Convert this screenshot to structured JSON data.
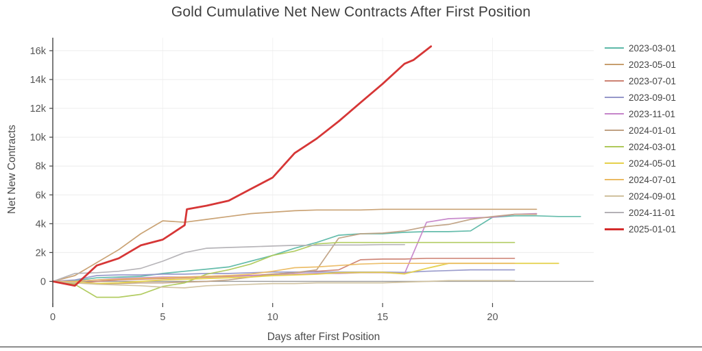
{
  "figure": {
    "title": "Gold Cumulative Net New Contracts After First Position",
    "xlabel": "Days after First Position",
    "ylabel": "Net New Contracts"
  },
  "style": {
    "background": "#ffffff",
    "grid_color": "#ececec",
    "vgrid_color": "#f2f2f2",
    "zeroline_color": "#999999",
    "axis_color": "#444444",
    "tick_label_color": "#555555",
    "bottom_divider_color": "#8d8d8d"
  },
  "chart_data": {
    "type": "line",
    "title": "Gold Cumulative Net New Contracts After First Position",
    "xlabel": "Days after First Position",
    "ylabel": "Net New Contracts",
    "xlim": [
      0,
      24.6
    ],
    "ylim": [
      -1500,
      16900
    ],
    "grid": true,
    "legend_position": "right",
    "x_ticks": {
      "values": [
        0,
        5,
        10,
        15,
        20
      ],
      "labels": [
        "0",
        "5",
        "10",
        "15",
        "20"
      ]
    },
    "y_ticks": {
      "values": [
        0,
        2000,
        4000,
        6000,
        8000,
        10000,
        12000,
        14000,
        16000
      ],
      "labels": [
        "0",
        "2k",
        "4k",
        "6k",
        "8k",
        "10k",
        "12k",
        "14k",
        "16k"
      ]
    },
    "series": [
      {
        "name": "2023-03-01",
        "color": "#5cb8a7",
        "line_width": 1.7,
        "x": [
          0,
          1,
          2,
          3,
          4,
          5,
          6,
          7,
          8,
          9,
          10,
          11,
          12,
          13,
          14,
          15,
          16,
          17,
          18,
          19,
          20,
          21,
          22,
          23,
          24
        ],
        "y": [
          0,
          50,
          250,
          300,
          350,
          550,
          700,
          850,
          1000,
          1400,
          1800,
          2300,
          2700,
          3200,
          3300,
          3300,
          3400,
          3450,
          3450,
          3500,
          4450,
          4550,
          4550,
          4500,
          4500
        ]
      },
      {
        "name": "2023-05-01",
        "color": "#c79e6e",
        "line_width": 1.7,
        "x": [
          0,
          1,
          2,
          3,
          4,
          5,
          6,
          7,
          8,
          9,
          10,
          11,
          12,
          13,
          14,
          15,
          16,
          17,
          18,
          19,
          20,
          21,
          22
        ],
        "y": [
          0,
          400,
          1300,
          2200,
          3300,
          4200,
          4100,
          4300,
          4500,
          4700,
          4800,
          4900,
          4950,
          4950,
          4950,
          5000,
          5000,
          5000,
          5000,
          5000,
          5000,
          5000,
          5000
        ]
      },
      {
        "name": "2023-07-01",
        "color": "#cc8172",
        "line_width": 1.7,
        "x": [
          0,
          1,
          2,
          3,
          4,
          5,
          6,
          7,
          8,
          9,
          10,
          11,
          12,
          13,
          14,
          15,
          16,
          17,
          18,
          19,
          20,
          21
        ],
        "y": [
          0,
          -150,
          0,
          100,
          150,
          200,
          250,
          300,
          350,
          400,
          500,
          600,
          700,
          800,
          1500,
          1550,
          1550,
          1600,
          1600,
          1600,
          1600,
          1600
        ]
      },
      {
        "name": "2023-09-01",
        "color": "#9597c9",
        "line_width": 1.7,
        "x": [
          0,
          1,
          2,
          3,
          4,
          5,
          6,
          7,
          8,
          9,
          10,
          11,
          12,
          13,
          14,
          15,
          16,
          17,
          18,
          19,
          20,
          21
        ],
        "y": [
          0,
          100,
          400,
          450,
          450,
          500,
          500,
          550,
          550,
          600,
          650,
          650,
          650,
          650,
          650,
          650,
          620,
          700,
          750,
          800,
          800,
          800
        ]
      },
      {
        "name": "2023-11-01",
        "color": "#c584c9",
        "line_width": 1.7,
        "x": [
          0,
          1,
          2,
          3,
          4,
          5,
          6,
          7,
          8,
          9,
          10,
          11,
          12,
          13,
          14,
          15,
          16,
          17,
          18,
          19,
          20,
          21,
          22
        ],
        "y": [
          0,
          0,
          100,
          200,
          250,
          300,
          300,
          350,
          400,
          400,
          450,
          500,
          550,
          550,
          600,
          600,
          550,
          4100,
          4350,
          4400,
          4450,
          4650,
          4700
        ]
      },
      {
        "name": "2024-01-01",
        "color": "#c0a183",
        "line_width": 1.7,
        "x": [
          0,
          1,
          2,
          3,
          4,
          5,
          6,
          7,
          8,
          9,
          10,
          11,
          12,
          13,
          14,
          15,
          16,
          17,
          18,
          19,
          20,
          21,
          22
        ],
        "y": [
          0,
          -100,
          -150,
          -150,
          -100,
          -100,
          -50,
          0,
          100,
          300,
          500,
          600,
          800,
          3000,
          3300,
          3350,
          3500,
          3800,
          3950,
          4300,
          4500,
          4650,
          4650
        ]
      },
      {
        "name": "2024-03-01",
        "color": "#aec95a",
        "line_width": 1.7,
        "x": [
          0,
          1,
          2,
          3,
          4,
          5,
          6,
          7,
          8,
          9,
          10,
          11,
          12,
          13,
          14,
          15,
          16,
          17,
          18,
          19,
          20,
          21
        ],
        "y": [
          0,
          -200,
          -1100,
          -1100,
          -900,
          -350,
          -100,
          500,
          800,
          1200,
          1800,
          2100,
          2600,
          2700,
          2700,
          2700,
          2700,
          2700,
          2700,
          2700,
          2700,
          2700
        ]
      },
      {
        "name": "2024-05-01",
        "color": "#e5d04a",
        "line_width": 1.9,
        "x": [
          0,
          1,
          2,
          3,
          4,
          5,
          6,
          7,
          8,
          9,
          10,
          11,
          12,
          13,
          14,
          15,
          16,
          17,
          18,
          19,
          20,
          21,
          22,
          23
        ],
        "y": [
          0,
          -50,
          -150,
          -100,
          0,
          100,
          150,
          200,
          250,
          300,
          400,
          450,
          500,
          600,
          620,
          630,
          520,
          900,
          1250,
          1250,
          1250,
          1250,
          1250,
          1250
        ]
      },
      {
        "name": "2024-07-01",
        "color": "#ebba62",
        "line_width": 1.7,
        "x": [
          0,
          1,
          2,
          3,
          4,
          5,
          6,
          7,
          8,
          9,
          10,
          11,
          12,
          13,
          14,
          15,
          16,
          17,
          18,
          19,
          20,
          21
        ],
        "y": [
          0,
          0,
          100,
          150,
          200,
          250,
          300,
          350,
          400,
          500,
          700,
          950,
          1000,
          1100,
          1200,
          1250,
          1250,
          1250,
          1250,
          1250,
          1250,
          1250
        ]
      },
      {
        "name": "2024-09-01",
        "color": "#d0c19e",
        "line_width": 1.7,
        "x": [
          0,
          1,
          2,
          3,
          4,
          5,
          6,
          7,
          8,
          9,
          10,
          11,
          12,
          13,
          14,
          15,
          16,
          17,
          18,
          19,
          20,
          21
        ],
        "y": [
          0,
          -100,
          -200,
          -250,
          -300,
          -400,
          -450,
          -300,
          -250,
          -200,
          -150,
          -150,
          -100,
          -100,
          -100,
          -100,
          -50,
          0,
          50,
          50,
          50,
          50
        ]
      },
      {
        "name": "2024-11-01",
        "color": "#b3b1b5",
        "line_width": 1.7,
        "x": [
          0,
          1,
          2,
          3,
          4,
          5,
          6,
          7,
          8,
          9,
          10,
          11,
          12,
          13,
          14,
          15,
          16
        ],
        "y": [
          0,
          550,
          600,
          700,
          900,
          1400,
          2000,
          2300,
          2350,
          2400,
          2450,
          2500,
          2500,
          2520,
          2520,
          2550,
          2550
        ]
      },
      {
        "name": "2025-01-01",
        "color": "#d42b2b",
        "line_width": 2.8,
        "x": [
          0,
          1,
          2,
          3,
          4,
          5,
          6,
          6.1,
          7,
          8,
          9,
          10,
          11,
          12,
          13,
          14,
          15,
          16,
          16.4,
          17.2
        ],
        "y": [
          0,
          -300,
          1100,
          1600,
          2500,
          2900,
          3900,
          5000,
          5250,
          5600,
          6400,
          7200,
          8900,
          9900,
          11100,
          12400,
          13700,
          15100,
          15350,
          16300
        ]
      }
    ]
  }
}
